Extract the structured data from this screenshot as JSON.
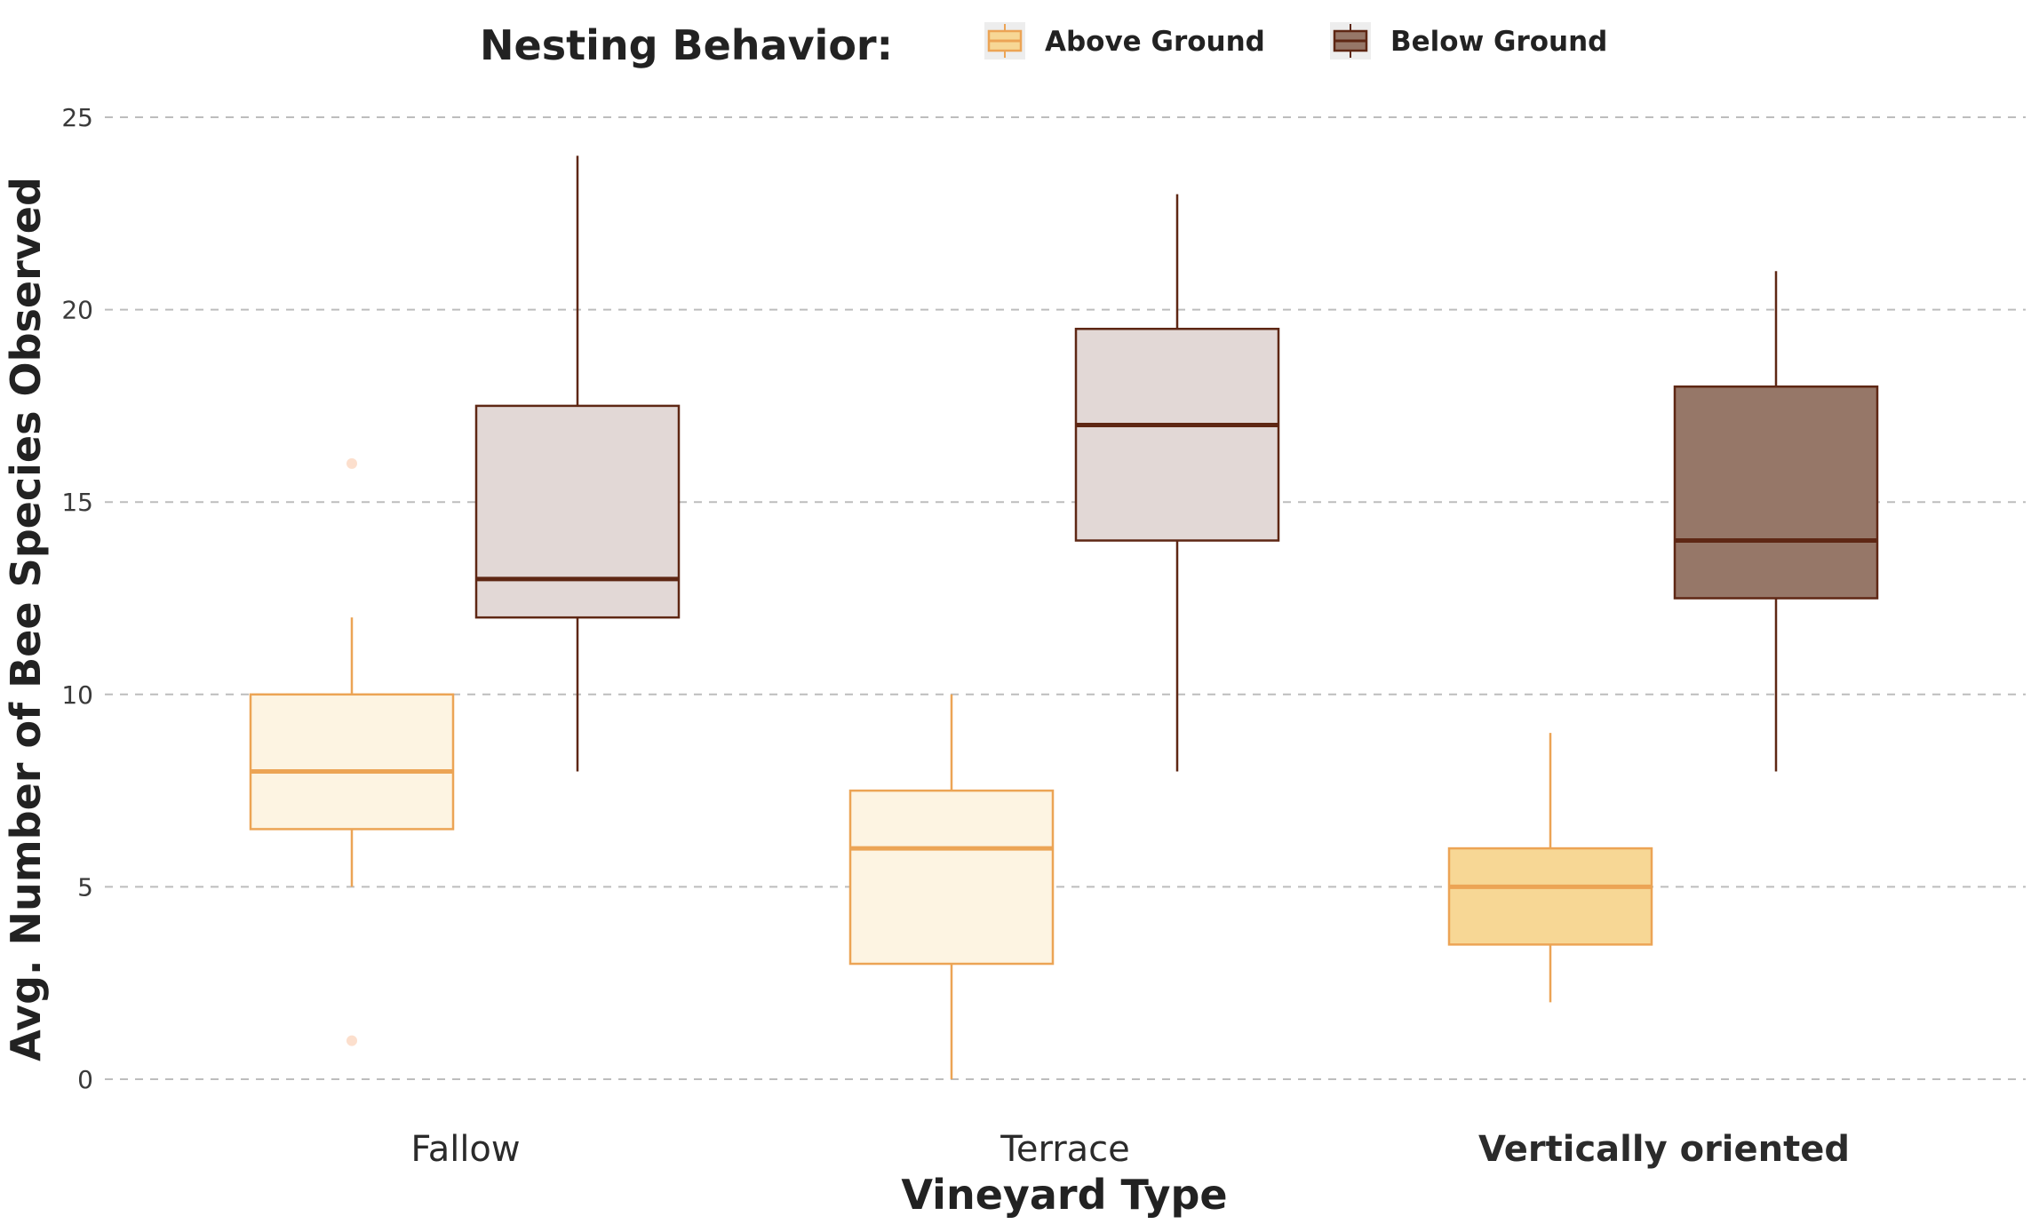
{
  "chart_data": {
    "type": "box",
    "xlabel": "Vineyard Type",
    "ylabel": "Avg. Number of Bee Species Observed",
    "ylim": [
      0,
      25
    ],
    "yticks": [
      0,
      5,
      10,
      15,
      20,
      25
    ],
    "grid": "horizontal-dashed",
    "categories": [
      "Fallow",
      "Terrace",
      "Vertically oriented"
    ],
    "highlighted_category": "Vertically oriented",
    "legend": {
      "title": "Nesting Behavior:",
      "placement": "top"
    },
    "series": [
      {
        "name": "Above Ground",
        "stroke": "#eca455",
        "fill": "#fdf4e2",
        "highlight_fill": "#f7d795",
        "legend_fill": "#f7d795",
        "boxes": [
          {
            "category": "Fallow",
            "whisker_low": 5,
            "q1": 6.5,
            "median": 8,
            "q3": 10,
            "whisker_high": 12,
            "outliers": [
              1,
              16
            ]
          },
          {
            "category": "Terrace",
            "whisker_low": 0,
            "q1": 3,
            "median": 6,
            "q3": 7.5,
            "whisker_high": 10,
            "outliers": []
          },
          {
            "category": "Vertically oriented",
            "whisker_low": 2,
            "q1": 3.5,
            "median": 5,
            "q3": 6,
            "whisker_high": 9,
            "outliers": []
          }
        ]
      },
      {
        "name": "Below Ground",
        "stroke": "#5e2714",
        "fill": "#e2d8d6",
        "highlight_fill": "#967768",
        "legend_fill": "#967768",
        "boxes": [
          {
            "category": "Fallow",
            "whisker_low": 8,
            "q1": 12,
            "median": 13,
            "q3": 17.5,
            "whisker_high": 24,
            "outliers": []
          },
          {
            "category": "Terrace",
            "whisker_low": 8,
            "q1": 14,
            "median": 17,
            "q3": 19.5,
            "whisker_high": 23,
            "outliers": []
          },
          {
            "category": "Vertically oriented",
            "whisker_low": 8,
            "q1": 12.5,
            "median": 14,
            "q3": 18,
            "whisker_high": 21,
            "outliers": []
          }
        ]
      }
    ]
  }
}
